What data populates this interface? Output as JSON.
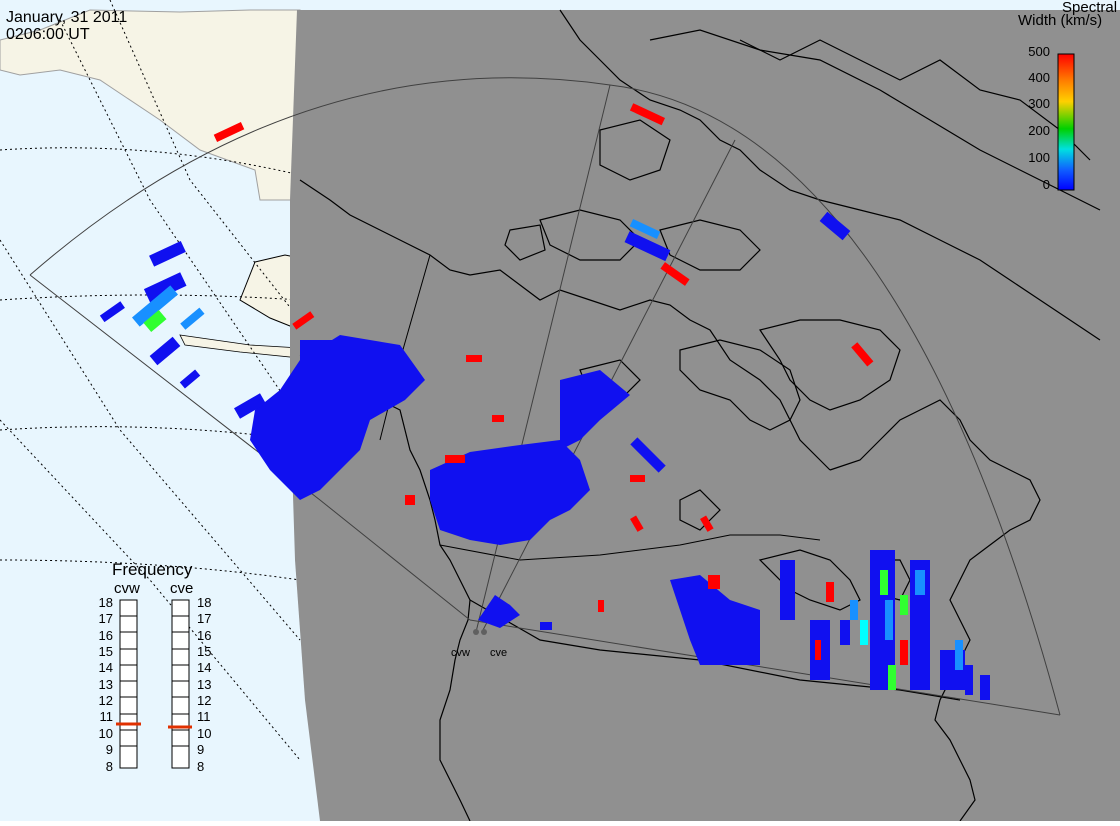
{
  "header": {
    "date": "January, 31 2011",
    "time": "0206:00 UT"
  },
  "colorbar": {
    "title_line1": "Spectral",
    "title_line2": "Width (km/s)",
    "ticks": [
      "500",
      "400",
      "300",
      "200",
      "100",
      "0"
    ],
    "gradient": [
      "#ff0000",
      "#ff8000",
      "#ffd000",
      "#00d000",
      "#00e0e0",
      "#1060ff",
      "#0000ff"
    ]
  },
  "frequency_panel": {
    "title": "Frequency",
    "radars": [
      {
        "name": "cvw",
        "selected_mhz": 10.8
      },
      {
        "name": "cve",
        "selected_mhz": 10.6
      }
    ],
    "ticks": [
      "18",
      "17",
      "16",
      "15",
      "14",
      "13",
      "12",
      "11",
      "10",
      "9",
      "8"
    ]
  },
  "sites": [
    {
      "name": "cvw"
    },
    {
      "name": "cve"
    }
  ],
  "colors": {
    "night_shade": "#909090",
    "ocean_day": "#e8f6fe",
    "land_day": "#f6f4e6",
    "coast": "#000000",
    "freq_marker": "#e03000",
    "low_width": "#1010f0",
    "mid_width": "#1890ff",
    "cyan_width": "#00ffff",
    "green_width": "#30ff30",
    "high_width": "#ff0000"
  }
}
